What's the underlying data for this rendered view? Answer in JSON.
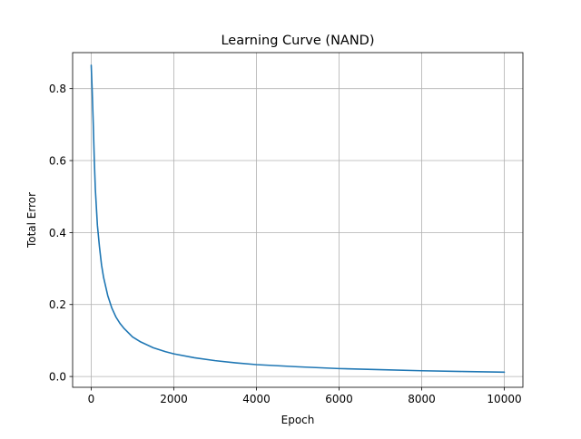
{
  "chart_data": {
    "type": "line",
    "title": "Learning Curve (NAND)",
    "xlabel": "Epoch",
    "ylabel": "Total Error",
    "xlim": [
      -450,
      10450
    ],
    "ylim": [
      -0.03,
      0.9
    ],
    "xticks": [
      0,
      2000,
      4000,
      6000,
      8000,
      10000
    ],
    "xtick_labels": [
      "0",
      "2000",
      "4000",
      "6000",
      "8000",
      "10000"
    ],
    "yticks": [
      0.0,
      0.2,
      0.4,
      0.6,
      0.8
    ],
    "ytick_labels": [
      "0.0",
      "0.2",
      "0.4",
      "0.6",
      "0.8"
    ],
    "grid": true,
    "legend": "none",
    "series": [
      {
        "color": "#1f77b4",
        "x": [
          0,
          25,
          50,
          75,
          100,
          150,
          200,
          250,
          300,
          400,
          500,
          600,
          700,
          800,
          1000,
          1200,
          1500,
          1800,
          2000,
          2500,
          3000,
          3500,
          4000,
          5000,
          6000,
          7000,
          8000,
          9000,
          10000
        ],
        "y": [
          0.865,
          0.79,
          0.7,
          0.6,
          0.52,
          0.42,
          0.36,
          0.31,
          0.275,
          0.225,
          0.19,
          0.165,
          0.147,
          0.133,
          0.11,
          0.096,
          0.08,
          0.069,
          0.063,
          0.052,
          0.044,
          0.038,
          0.033,
          0.027,
          0.022,
          0.019,
          0.016,
          0.014,
          0.012
        ]
      }
    ]
  }
}
